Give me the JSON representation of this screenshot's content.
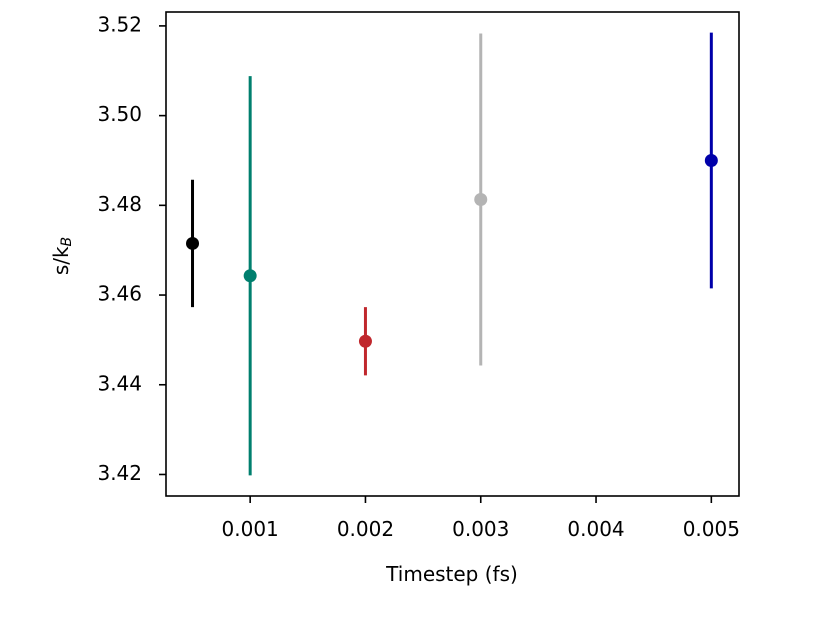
{
  "chart_data": {
    "type": "scatter",
    "xlabel": "Timestep (fs)",
    "ylabel": {
      "main": "s/k",
      "sub": "B"
    },
    "xlim": [
      0.00027,
      0.00524
    ],
    "ylim": [
      3.4152,
      3.5231
    ],
    "xticks": [
      0.001,
      0.002,
      0.003,
      0.004,
      0.005
    ],
    "xtick_labels": [
      "0.001",
      "0.002",
      "0.003",
      "0.004",
      "0.005"
    ],
    "yticks": [
      3.42,
      3.44,
      3.46,
      3.48,
      3.5,
      3.52
    ],
    "ytick_labels": [
      "3.42",
      "3.44",
      "3.46",
      "3.48",
      "3.50",
      "3.52"
    ],
    "grid": false,
    "points": [
      {
        "x": 0.0005,
        "y": 3.4715,
        "err": 0.0142,
        "color": "#000000"
      },
      {
        "x": 0.001,
        "y": 3.4643,
        "err": 0.0445,
        "color": "#007f6e"
      },
      {
        "x": 0.002,
        "y": 3.4497,
        "err": 0.0076,
        "color": "#c0272d"
      },
      {
        "x": 0.003,
        "y": 3.4813,
        "err": 0.037,
        "color": "#b4b4b4"
      },
      {
        "x": 0.005,
        "y": 3.49,
        "err": 0.0285,
        "color": "#0000aa"
      }
    ]
  }
}
